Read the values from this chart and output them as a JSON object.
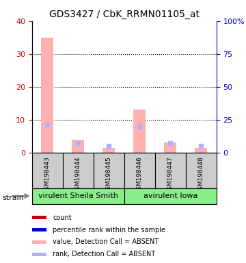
{
  "title": "GDS3427 / CbK_RRMN01105_at",
  "samples": [
    "GSM198443",
    "GSM198444",
    "GSM198445",
    "GSM198446",
    "GSM198447",
    "GSM198448"
  ],
  "bar_values": [
    35,
    4,
    1.5,
    13,
    3,
    1.5
  ],
  "rank_values": [
    21,
    7,
    5,
    19.5,
    7,
    5
  ],
  "bar_color": "#ffb0b0",
  "rank_color": "#b0b0ff",
  "ylim_left": [
    0,
    40
  ],
  "ylim_right": [
    0,
    100
  ],
  "yticks_left": [
    0,
    10,
    20,
    30,
    40
  ],
  "yticks_right": [
    0,
    25,
    50,
    75,
    100
  ],
  "ytick_labels_right": [
    "0",
    "25",
    "50",
    "75",
    "100%"
  ],
  "left_tick_color": "#cc0000",
  "right_tick_color": "#0000cc",
  "group1_label": "virulent Sheila Smith",
  "group2_label": "avirulent Iowa",
  "group1_indices": [
    0,
    1,
    2
  ],
  "group2_indices": [
    3,
    4,
    5
  ],
  "group_bg_color": "#88ee88",
  "sample_bg_color": "#cccccc",
  "strain_label": "strain",
  "legend_items": [
    {
      "label": "count",
      "color": "#cc0000",
      "marker": "s"
    },
    {
      "label": "percentile rank within the sample",
      "color": "#0000cc",
      "marker": "s"
    },
    {
      "label": "value, Detection Call = ABSENT",
      "color": "#ffb0b0",
      "marker": "s"
    },
    {
      "label": "rank, Detection Call = ABSENT",
      "color": "#b0b0ff",
      "marker": "s"
    }
  ],
  "bar_width": 0.4
}
